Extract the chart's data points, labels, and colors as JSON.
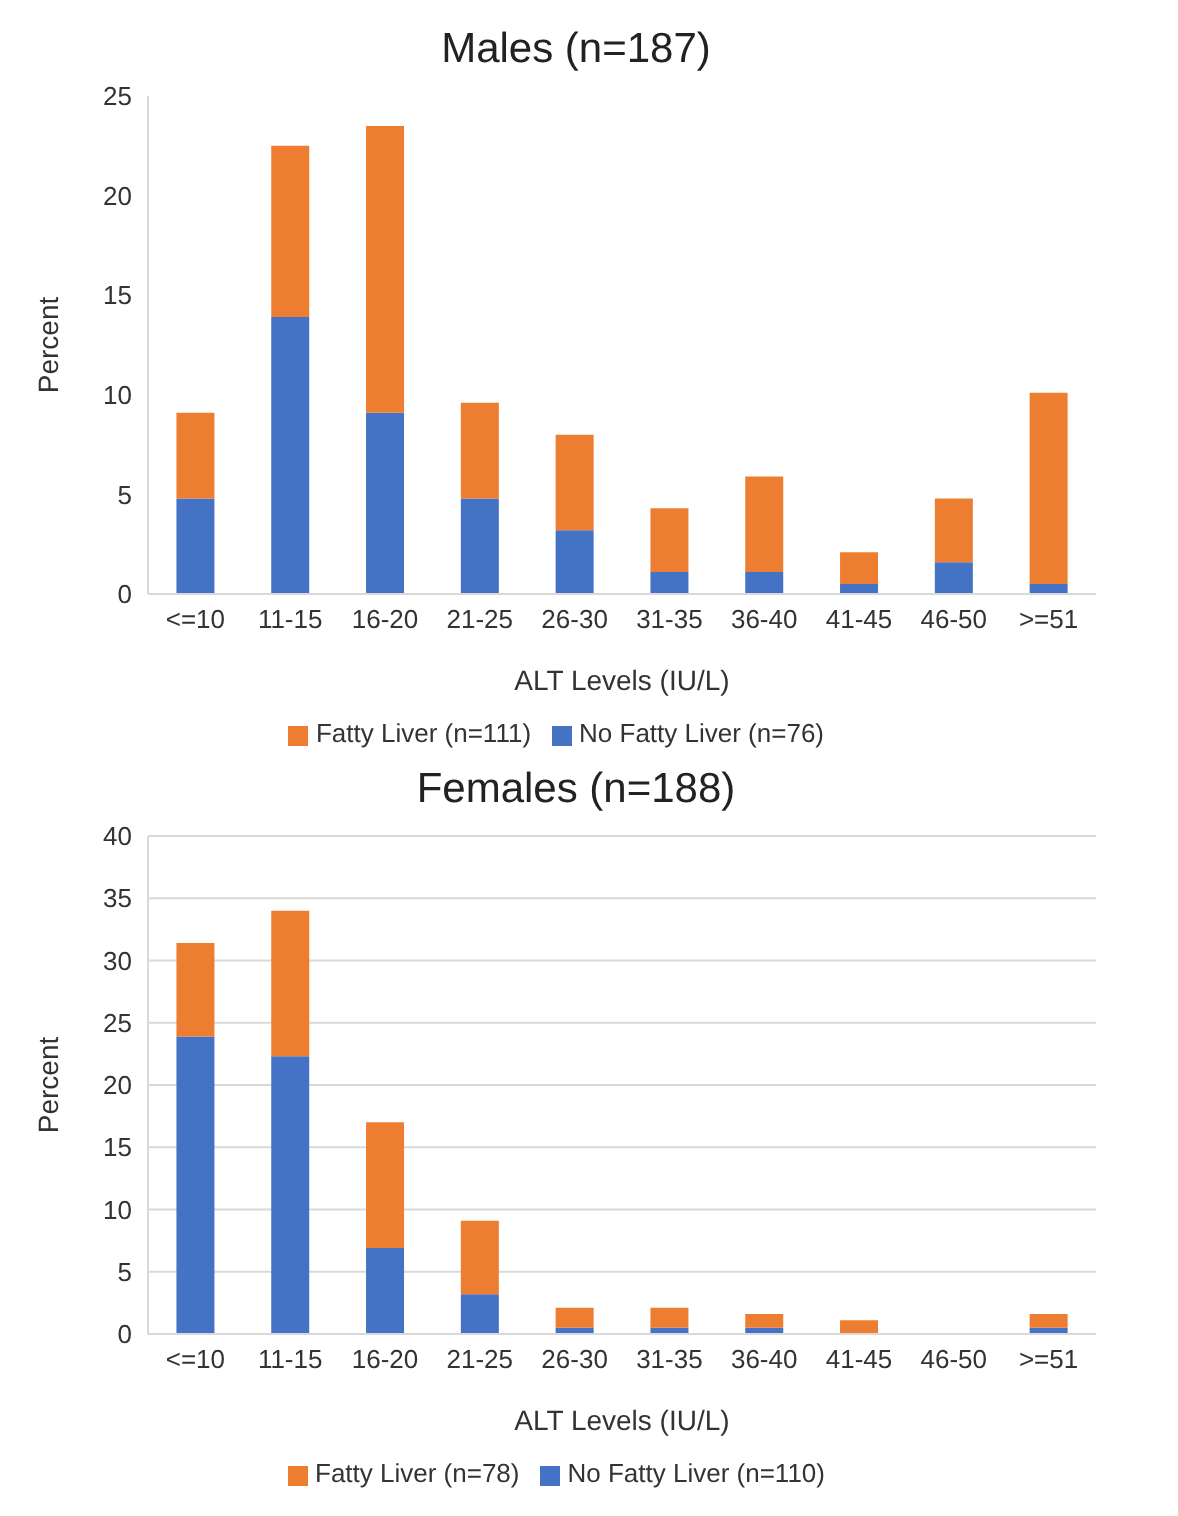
{
  "chart_data": [
    {
      "type": "bar",
      "title": "Males (n=187)",
      "xlabel": "ALT Levels (IU/L)",
      "ylabel": "Percent",
      "stacked": true,
      "legend": "bottom",
      "categories": [
        "<=10",
        "11-15",
        "16-20",
        "21-25",
        "26-30",
        "31-35",
        "36-40",
        "41-45",
        "46-50",
        ">=51"
      ],
      "ylim": [
        0,
        25
      ],
      "yticks": [
        0,
        5,
        10,
        15,
        20,
        25
      ],
      "series": [
        {
          "name": "No Fatty Liver (n=76)",
          "color": "#4472c4",
          "values": [
            4.8,
            13.9,
            9.1,
            4.8,
            3.2,
            1.1,
            1.1,
            0.5,
            1.6,
            0.5
          ]
        },
        {
          "name": "Fatty Liver (n=111)",
          "color": "#ed7d31",
          "values": [
            4.3,
            8.6,
            14.4,
            4.8,
            4.8,
            3.2,
            4.8,
            1.6,
            3.2,
            9.6
          ]
        }
      ]
    },
    {
      "type": "bar",
      "title": "Females (n=188)",
      "xlabel": "ALT Levels (IU/L)",
      "ylabel": "Percent",
      "stacked": true,
      "legend": "bottom",
      "grid": "y",
      "categories": [
        "<=10",
        "11-15",
        "16-20",
        "21-25",
        "26-30",
        "31-35",
        "36-40",
        "41-45",
        "46-50",
        ">=51"
      ],
      "ylim": [
        0,
        40
      ],
      "yticks": [
        0,
        5,
        10,
        15,
        20,
        25,
        30,
        35,
        40
      ],
      "series": [
        {
          "name": "No Fatty Liver (n=110)",
          "color": "#4472c4",
          "values": [
            23.9,
            22.3,
            6.9,
            3.2,
            0.5,
            0.5,
            0.5,
            0,
            0,
            0.5
          ]
        },
        {
          "name": "Fatty Liver (n=78)",
          "color": "#ed7d31",
          "values": [
            7.5,
            11.7,
            10.1,
            5.9,
            1.6,
            1.6,
            1.1,
            1.1,
            0,
            1.1
          ]
        }
      ]
    }
  ]
}
